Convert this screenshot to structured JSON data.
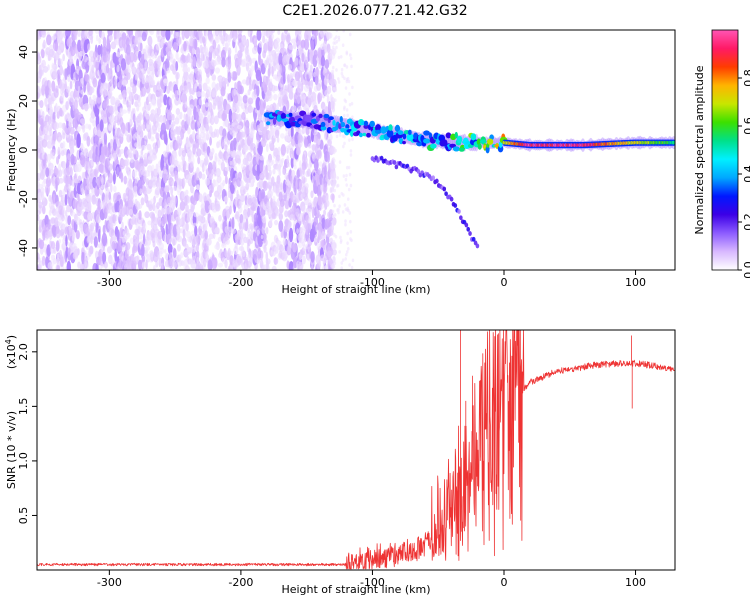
{
  "title": "C2E1.2026.077.21.42.G32",
  "chart_data": [
    {
      "type": "heatmap",
      "xlabel": "Height of straight line (km)",
      "ylabel": "Frequency (Hz)",
      "xlim": [
        -355,
        130
      ],
      "ylim": [
        -49,
        49
      ],
      "x_ticks": [
        -300,
        -200,
        -100,
        0,
        100
      ],
      "y_ticks": [
        -40,
        -20,
        0,
        20,
        40
      ],
      "colorbar": {
        "label": "Normalized spectral amplitude",
        "range": [
          0,
          1
        ],
        "ticks": [
          "0.0",
          "0.2",
          "0.4",
          "0.6",
          "0.8"
        ],
        "colors": [
          "#ffffff",
          "#d8b8ff",
          "#8c5cff",
          "#3c00e6",
          "#0018ff",
          "#00a8ff",
          "#00f0ff",
          "#00e08a",
          "#3ce000",
          "#c8e600",
          "#ffb400",
          "#ff3c00",
          "#ff1a66",
          "#ff55b4"
        ]
      },
      "features": {
        "noise_region_x": [
          -355,
          -130
        ],
        "line_trace": [
          {
            "x": -180,
            "y": 13,
            "amp": 0.4
          },
          {
            "x": -150,
            "y": 12,
            "amp": 0.3
          },
          {
            "x": -120,
            "y": 10,
            "amp": 0.45
          },
          {
            "x": -90,
            "y": 7,
            "amp": 0.45
          },
          {
            "x": -60,
            "y": 4,
            "amp": 0.5
          },
          {
            "x": -30,
            "y": 3,
            "amp": 0.55
          },
          {
            "x": 0,
            "y": 3,
            "amp": 0.75
          },
          {
            "x": 20,
            "y": 2,
            "amp": 1.0
          },
          {
            "x": 60,
            "y": 2,
            "amp": 1.0
          },
          {
            "x": 100,
            "y": 3,
            "amp": 0.75
          },
          {
            "x": 130,
            "y": 3,
            "amp": 0.6
          }
        ],
        "tail_trace": [
          {
            "x": -100,
            "y": -3
          },
          {
            "x": -75,
            "y": -7
          },
          {
            "x": -55,
            "y": -11
          },
          {
            "x": -40,
            "y": -20
          },
          {
            "x": -27,
            "y": -33
          },
          {
            "x": -20,
            "y": -40
          }
        ]
      }
    },
    {
      "type": "line",
      "xlabel": "Height of straight line (km)",
      "ylabel": "SNR (10 * v/v)",
      "scale_label": "(x10",
      "scale_exponent": "4",
      "scale_suffix": ")",
      "xlim": [
        -355,
        130
      ],
      "ylim": [
        0,
        2.2
      ],
      "x_ticks": [
        -300,
        -200,
        -100,
        0,
        100
      ],
      "y_ticks": [
        "0.5",
        "1.0",
        "1.5",
        "2.0"
      ],
      "color": "#ee3333",
      "profile": [
        {
          "x": -355,
          "y": 0.05
        },
        {
          "x": -120,
          "y": 0.05
        },
        {
          "x": -100,
          "y": 0.1
        },
        {
          "x": -70,
          "y": 0.18
        },
        {
          "x": -50,
          "y": 0.28
        },
        {
          "x": -40,
          "y": 0.45
        },
        {
          "x": -30,
          "y": 0.65
        },
        {
          "x": -20,
          "y": 0.95
        },
        {
          "x": -10,
          "y": 1.2
        },
        {
          "x": 0,
          "y": 1.45
        },
        {
          "x": 10,
          "y": 1.62
        },
        {
          "x": 20,
          "y": 1.72
        },
        {
          "x": 40,
          "y": 1.82
        },
        {
          "x": 70,
          "y": 1.88
        },
        {
          "x": 95,
          "y": 1.9
        },
        {
          "x": 110,
          "y": 1.88
        },
        {
          "x": 130,
          "y": 1.83
        }
      ],
      "spikes": [
        {
          "x": -33,
          "y": 2.2
        },
        {
          "x": -29,
          "y": 1.55
        },
        {
          "x": -24,
          "y": 1.78
        },
        {
          "x": -18,
          "y": 1.74
        },
        {
          "x": 97,
          "y": 2.15
        },
        {
          "x": 97.5,
          "y": 1.48
        }
      ]
    }
  ]
}
